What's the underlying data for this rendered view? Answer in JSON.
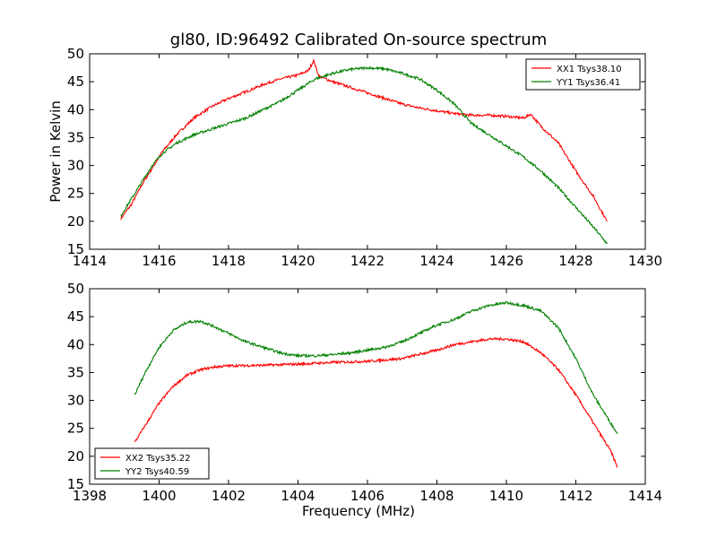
{
  "title": "gl80, ID:96492 Calibrated On-source spectrum",
  "xlabel": "Frequency (MHz)",
  "ylabel": "Power in Kelvin",
  "colors": {
    "xx": "#ff0000",
    "yy": "#008000"
  },
  "chart_data": [
    {
      "type": "line",
      "ylabel": "Power in Kelvin",
      "xlim": [
        1414,
        1430
      ],
      "ylim": [
        15,
        50
      ],
      "xticks": [
        "1414",
        "1416",
        "1418",
        "1420",
        "1422",
        "1424",
        "1426",
        "1428",
        "1430"
      ],
      "yticks": [
        "15",
        "20",
        "25",
        "30",
        "35",
        "40",
        "45",
        "50"
      ],
      "legend_position": "top-right",
      "series": [
        {
          "name": "XX1 Tsys38.10",
          "color": "#ff0000",
          "x": [
            1414.9,
            1415.2,
            1415.5,
            1415.8,
            1416.1,
            1416.5,
            1417.0,
            1417.5,
            1418.0,
            1418.5,
            1419.0,
            1419.5,
            1420.0,
            1420.3,
            1420.45,
            1420.6,
            1421.0,
            1421.5,
            1422.0,
            1422.5,
            1423.0,
            1423.5,
            1424.0,
            1424.5,
            1425.0,
            1425.5,
            1426.0,
            1426.5,
            1426.7,
            1427.0,
            1427.5,
            1428.0,
            1428.5,
            1428.9
          ],
          "y": [
            20.5,
            23,
            26.5,
            29.5,
            32.5,
            35.5,
            38.5,
            40.5,
            42,
            43.2,
            44.5,
            45.5,
            46.2,
            47,
            48.8,
            46,
            45,
            44,
            43,
            42,
            41,
            40.3,
            39.8,
            39.3,
            39,
            39,
            38.8,
            38.5,
            39.2,
            37,
            34,
            29,
            24.5,
            20
          ]
        },
        {
          "name": "YY1 Tsys36.41",
          "color": "#008000",
          "x": [
            1414.9,
            1415.2,
            1415.5,
            1415.8,
            1416.1,
            1416.5,
            1417.0,
            1417.5,
            1418.0,
            1418.5,
            1419.0,
            1419.5,
            1420.0,
            1420.5,
            1421.0,
            1421.5,
            1422.0,
            1422.5,
            1423.0,
            1423.5,
            1424.0,
            1424.5,
            1425.0,
            1425.5,
            1426.0,
            1426.5,
            1427.0,
            1427.5,
            1428.0,
            1428.5,
            1428.9
          ],
          "y": [
            21,
            24,
            27,
            30,
            32.2,
            34,
            35.5,
            36.5,
            37.5,
            38.5,
            40,
            41.5,
            43.5,
            45.5,
            46.5,
            47.2,
            47.5,
            47.3,
            46.5,
            45.5,
            43.5,
            41,
            37.5,
            35.5,
            33.5,
            31.5,
            29,
            26,
            22.5,
            19,
            16
          ]
        }
      ]
    },
    {
      "type": "line",
      "xlabel": "Frequency (MHz)",
      "xlim": [
        1398,
        1414
      ],
      "ylim": [
        15,
        50
      ],
      "xticks": [
        "1398",
        "1400",
        "1402",
        "1404",
        "1406",
        "1408",
        "1410",
        "1412",
        "1414"
      ],
      "yticks": [
        "15",
        "20",
        "25",
        "30",
        "35",
        "40",
        "45",
        "50"
      ],
      "legend_position": "bottom-left",
      "series": [
        {
          "name": "XX2 Tsys35.22",
          "color": "#ff0000",
          "x": [
            1399.3,
            1399.6,
            1400.0,
            1400.4,
            1400.8,
            1401.2,
            1401.6,
            1402.0,
            1403.0,
            1404.0,
            1405.0,
            1406.0,
            1407.0,
            1408.0,
            1408.5,
            1409.0,
            1409.5,
            1410.0,
            1410.5,
            1411.0,
            1411.5,
            1412.0,
            1412.5,
            1413.0,
            1413.2
          ],
          "y": [
            22.5,
            25.5,
            29.5,
            32.5,
            34.5,
            35.5,
            36,
            36.2,
            36.3,
            36.5,
            36.8,
            37,
            37.5,
            39,
            40,
            40.5,
            41,
            41,
            40.5,
            38.5,
            35.5,
            31,
            26,
            21,
            18
          ]
        },
        {
          "name": "YY2 Tsys40.59",
          "color": "#008000",
          "x": [
            1399.3,
            1399.6,
            1400.0,
            1400.4,
            1400.8,
            1401.2,
            1401.6,
            1402.0,
            1402.5,
            1403.0,
            1403.5,
            1404.0,
            1404.5,
            1405.0,
            1405.5,
            1406.0,
            1406.5,
            1407.0,
            1407.5,
            1408.0,
            1408.5,
            1409.0,
            1409.5,
            1410.0,
            1410.5,
            1411.0,
            1411.5,
            1412.0,
            1412.5,
            1413.0,
            1413.2
          ],
          "y": [
            31,
            35,
            39.5,
            42.5,
            44,
            44.2,
            43.2,
            42,
            40.5,
            39.5,
            38.5,
            38,
            38,
            38.2,
            38.5,
            39,
            39.5,
            40.5,
            42,
            43.5,
            44.5,
            46,
            47,
            47.5,
            47,
            46,
            43,
            37.5,
            31,
            26,
            24
          ]
        }
      ]
    }
  ]
}
